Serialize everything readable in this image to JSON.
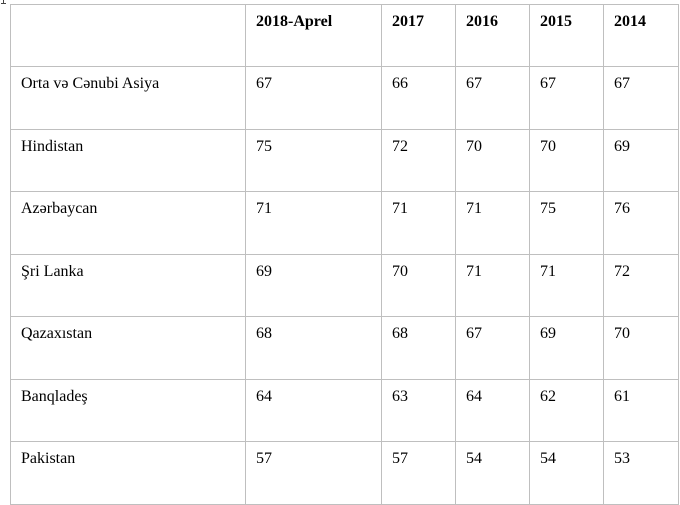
{
  "table": {
    "headers": [
      "",
      "2018-Aprel",
      "2017",
      "2016",
      "2015",
      "2014"
    ],
    "rows": [
      [
        "Orta və Cənubi Asiya",
        "67",
        "66",
        "67",
        "67",
        "67"
      ],
      [
        "Hindistan",
        "75",
        "72",
        "70",
        "70",
        "69"
      ],
      [
        "Azərbaycan",
        "71",
        "71",
        "71",
        "75",
        "76"
      ],
      [
        "Şri Lanka",
        "69",
        "70",
        "71",
        "71",
        "72"
      ],
      [
        "Qazaxıstan",
        "68",
        "68",
        "67",
        "69",
        "70"
      ],
      [
        "Banqladeş",
        "64",
        "63",
        "64",
        "62",
        "61"
      ],
      [
        "Pakistan",
        "57",
        "57",
        "54",
        "54",
        "53"
      ]
    ]
  }
}
